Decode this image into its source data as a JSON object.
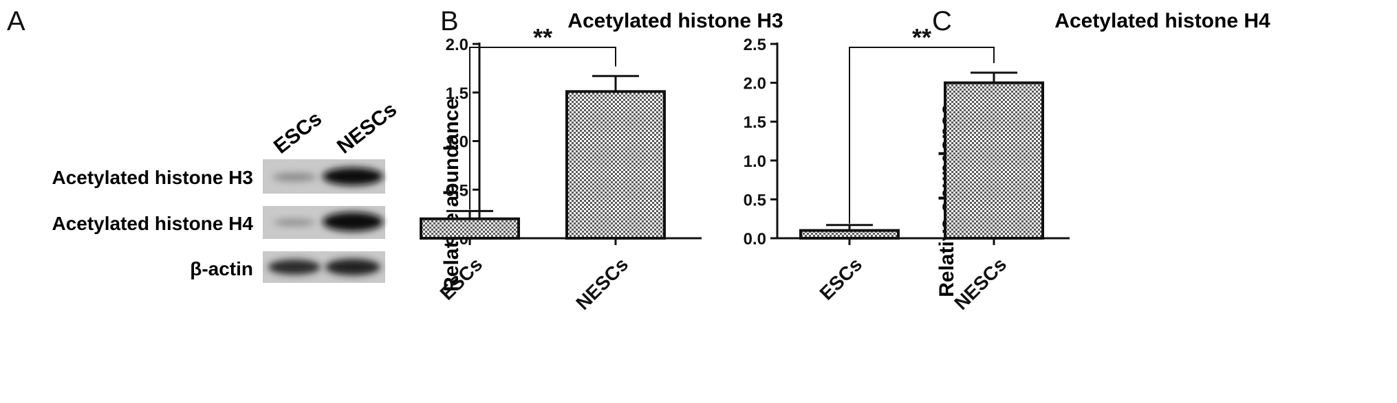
{
  "panels": {
    "a": {
      "letter": "A",
      "columns": [
        "ESCs",
        "NESCs"
      ],
      "rows": [
        "Acetylated histone H3",
        "Acetylated histone H4",
        "β-actin"
      ],
      "bands": [
        {
          "row": "Acetylated histone H3",
          "ESCs": "faint",
          "NESCs": "strong"
        },
        {
          "row": "Acetylated histone H4",
          "ESCs": "faint",
          "NESCs": "strong"
        },
        {
          "row": "β-actin",
          "ESCs": "strong",
          "NESCs": "strong"
        }
      ]
    },
    "b": {
      "letter": "B"
    },
    "c": {
      "letter": "C"
    }
  },
  "chart_data": [
    {
      "type": "bar",
      "panel": "B",
      "title": "Acetylated histone H3",
      "xlabel": "",
      "ylabel": "Relative abundance",
      "categories": [
        "ESCs",
        "NESCs"
      ],
      "values": [
        0.2,
        1.51
      ],
      "error": [
        0.08,
        0.16
      ],
      "ylim": [
        0,
        2.0
      ],
      "yticks": [
        "0.0",
        "0.5",
        "1.0",
        "1.5",
        "2.0"
      ],
      "significance": "**",
      "fill": "crosshatch grey",
      "grid": false
    },
    {
      "type": "bar",
      "panel": "C",
      "title": "Acetylated histone H4",
      "xlabel": "",
      "ylabel": "Relative abundance",
      "categories": [
        "ESCs",
        "NESCs"
      ],
      "values": [
        0.1,
        2.0
      ],
      "error": [
        0.07,
        0.13
      ],
      "ylim": [
        0,
        2.5
      ],
      "yticks": [
        "0.0",
        "0.5",
        "1.0",
        "1.5",
        "2.0",
        "2.5"
      ],
      "significance": "**",
      "fill": "crosshatch grey",
      "grid": false
    }
  ]
}
